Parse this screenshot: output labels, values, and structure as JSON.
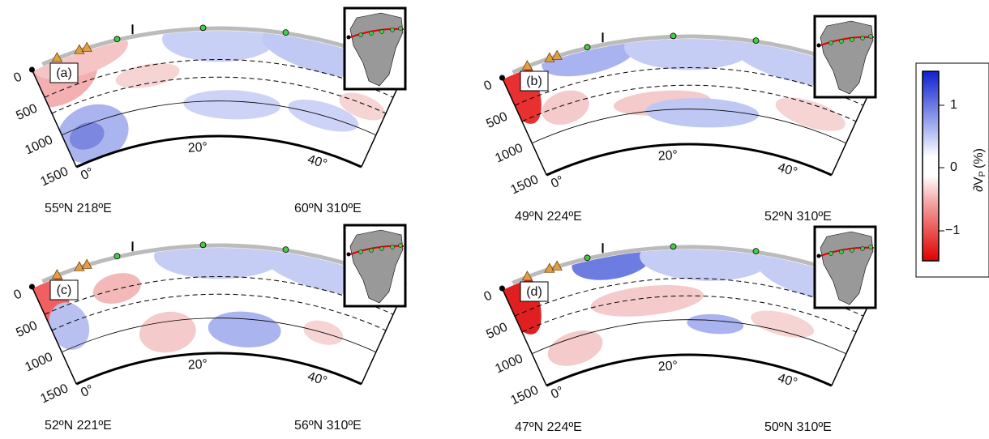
{
  "panels": [
    {
      "label": "(a)",
      "start": "55ºN 218ºE",
      "end": "60ºN 310ºE"
    },
    {
      "label": "(b)",
      "start": "49ºN 224ºE",
      "end": "52ºN 310ºE"
    },
    {
      "label": "(c)",
      "start": "52ºN 221ºE",
      "end": "56ºN 310ºE"
    },
    {
      "label": "(d)",
      "start": "47ºN 224ºE",
      "end": "50ºN 310ºE"
    }
  ],
  "depth_ticks": [
    "0",
    "500",
    "1000",
    "1500"
  ],
  "distance_ticks": [
    "0°",
    "20°",
    "40°"
  ],
  "colorbar": {
    "symbol": "∂V",
    "subscript": "P",
    "unit": "(%)",
    "ticks": [
      "1",
      "0",
      "−1"
    ]
  }
}
